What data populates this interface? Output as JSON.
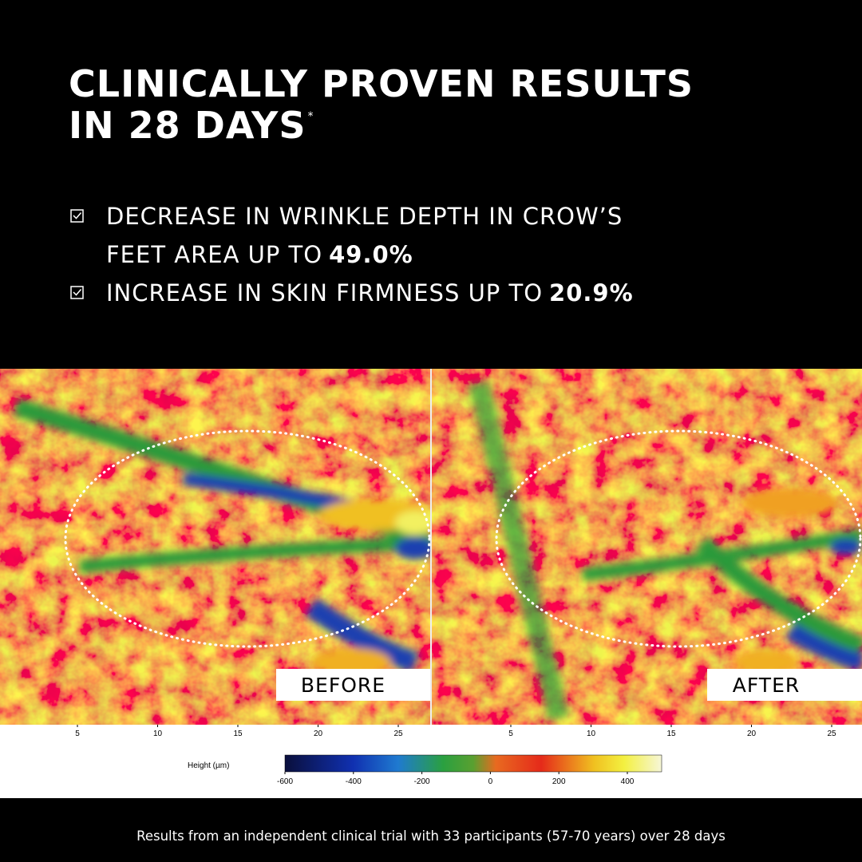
{
  "header": {
    "title_lines": [
      "CLINICALLY PROVEN RESULTS",
      "IN 28 DAYS"
    ],
    "asterisk": "*"
  },
  "claims": [
    {
      "lines": [
        "DECREASE IN WRINKLE DEPTH IN CROW’S",
        "FEET AREA UP TO"
      ],
      "value": "49.0%"
    },
    {
      "lines": [
        "INCREASE IN SKIN FIRMNESS  UP TO"
      ],
      "value": "20.9%"
    }
  ],
  "panels": [
    {
      "label": "BEFORE",
      "xticks": [
        5,
        10,
        15,
        20,
        25
      ]
    },
    {
      "label": "AFTER",
      "xticks": [
        5,
        10,
        15,
        20,
        25
      ]
    }
  ],
  "colorbar": {
    "label": "Height  (µm)",
    "ticks": [
      -600,
      -400,
      -200,
      0,
      200,
      400
    ]
  },
  "footnote": "Results from an independent clinical trial with 33 participants (57-70 years) over 28 days"
}
